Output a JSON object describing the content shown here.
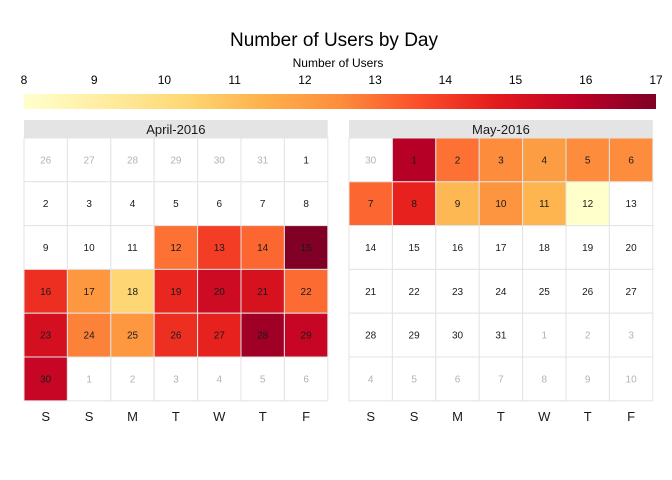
{
  "chart_data": {
    "type": "heatmap",
    "title": "Number of Users by Day",
    "legend": {
      "title": "Number of Users",
      "placement": "top",
      "min": 8,
      "max": 17,
      "ticks": [
        "8",
        "9",
        "10",
        "11",
        "12",
        "13",
        "14",
        "15",
        "16",
        "17"
      ],
      "colors": [
        "#ffffcc",
        "#ffeda0",
        "#fed976",
        "#feb24c",
        "#fd8d3c",
        "#fc4e2a",
        "#e31a1c",
        "#bd0026",
        "#800026"
      ]
    },
    "weekday_labels": [
      "S",
      "S",
      "M",
      "T",
      "W",
      "T",
      "F"
    ],
    "months": [
      {
        "name": "April-2016",
        "weeks": [
          [
            {
              "d": "26",
              "o": true
            },
            {
              "d": "27",
              "o": true
            },
            {
              "d": "28",
              "o": true
            },
            {
              "d": "29",
              "o": true
            },
            {
              "d": "30",
              "o": true
            },
            {
              "d": "31",
              "o": true
            },
            {
              "d": "1"
            }
          ],
          [
            {
              "d": "2"
            },
            {
              "d": "3"
            },
            {
              "d": "4"
            },
            {
              "d": "5"
            },
            {
              "d": "6"
            },
            {
              "d": "7"
            },
            {
              "d": "8"
            }
          ],
          [
            {
              "d": "9"
            },
            {
              "d": "10"
            },
            {
              "d": "11"
            },
            {
              "d": "12",
              "v": 13
            },
            {
              "d": "13",
              "v": 14
            },
            {
              "d": "14",
              "v": 13.2
            },
            {
              "d": "15",
              "v": 17
            }
          ],
          [
            {
              "d": "16",
              "v": 14.3
            },
            {
              "d": "17",
              "v": 12.2
            },
            {
              "d": "18",
              "v": 10.3
            },
            {
              "d": "19",
              "v": 14.5
            },
            {
              "d": "20",
              "v": 15.4
            },
            {
              "d": "21",
              "v": 15.1
            },
            {
              "d": "22",
              "v": 13.1
            }
          ],
          [
            {
              "d": "23",
              "v": 15.2
            },
            {
              "d": "24",
              "v": 12.7
            },
            {
              "d": "25",
              "v": 12.2
            },
            {
              "d": "26",
              "v": 14.3
            },
            {
              "d": "27",
              "v": 14.6
            },
            {
              "d": "28",
              "v": 16.4
            },
            {
              "d": "29",
              "v": 15.6
            }
          ],
          [
            {
              "d": "30",
              "v": 15.6
            },
            {
              "d": "1",
              "o": true
            },
            {
              "d": "2",
              "o": true
            },
            {
              "d": "3",
              "o": true
            },
            {
              "d": "4",
              "o": true
            },
            {
              "d": "5",
              "o": true
            },
            {
              "d": "6",
              "o": true
            }
          ]
        ]
      },
      {
        "name": "May-2016",
        "weeks": [
          [
            {
              "d": "30",
              "o": true
            },
            {
              "d": "1",
              "v": 16
            },
            {
              "d": "2",
              "v": 13
            },
            {
              "d": "3",
              "v": 12.5
            },
            {
              "d": "4",
              "v": 12
            },
            {
              "d": "5",
              "v": 12.5
            },
            {
              "d": "6",
              "v": 12.5
            }
          ],
          [
            {
              "d": "7",
              "v": 13.2
            },
            {
              "d": "8",
              "v": 14.6
            },
            {
              "d": "9",
              "v": 11.2
            },
            {
              "d": "10",
              "v": 12.3
            },
            {
              "d": "11",
              "v": 11.3
            },
            {
              "d": "12",
              "v": 8
            },
            {
              "d": "13"
            }
          ],
          [
            {
              "d": "14"
            },
            {
              "d": "15"
            },
            {
              "d": "16"
            },
            {
              "d": "17"
            },
            {
              "d": "18"
            },
            {
              "d": "19"
            },
            {
              "d": "20"
            }
          ],
          [
            {
              "d": "21"
            },
            {
              "d": "22"
            },
            {
              "d": "23"
            },
            {
              "d": "24"
            },
            {
              "d": "25"
            },
            {
              "d": "26"
            },
            {
              "d": "27"
            }
          ],
          [
            {
              "d": "28"
            },
            {
              "d": "29"
            },
            {
              "d": "30"
            },
            {
              "d": "31"
            },
            {
              "d": "1",
              "o": true
            },
            {
              "d": "2",
              "o": true
            },
            {
              "d": "3",
              "o": true
            }
          ],
          [
            {
              "d": "4",
              "o": true
            },
            {
              "d": "5",
              "o": true
            },
            {
              "d": "6",
              "o": true
            },
            {
              "d": "7",
              "o": true
            },
            {
              "d": "8",
              "o": true
            },
            {
              "d": "9",
              "o": true
            },
            {
              "d": "10",
              "o": true
            }
          ]
        ]
      }
    ]
  }
}
